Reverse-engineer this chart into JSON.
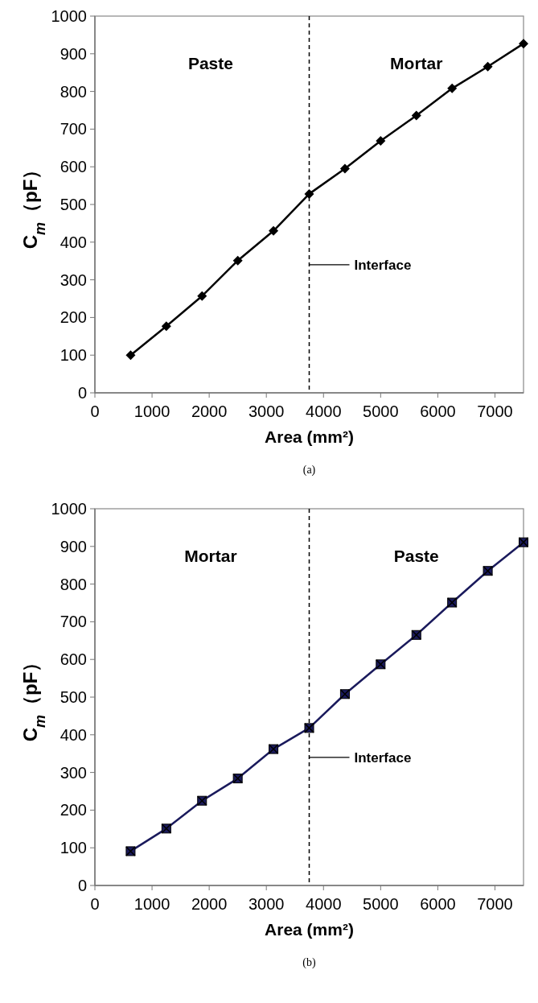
{
  "chart_data": [
    {
      "type": "line",
      "xlabel": "Area (mm²)",
      "ylabel": "C$_{m}$（pF）",
      "x": [
        625,
        1250,
        1875,
        2500,
        3125,
        3750,
        4375,
        5000,
        5625,
        6250,
        6875,
        7500
      ],
      "series": [
        {
          "color": "#000000",
          "values": [
            100,
            177,
            257,
            351,
            430,
            528,
            595,
            669,
            736,
            808,
            866,
            927
          ]
        }
      ],
      "marker": "diamond",
      "line_style": "solid",
      "xlim": [
        0,
        7500
      ],
      "xticks": [
        0,
        1000,
        2000,
        3000,
        4000,
        5000,
        6000,
        7000
      ],
      "ylim": [
        0,
        1000
      ],
      "yticks": [
        0,
        100,
        200,
        300,
        400,
        500,
        600,
        700,
        800,
        900,
        1000
      ],
      "grid": false,
      "ref_lines": [
        {
          "axis": "x",
          "value": 3750,
          "label": "Interface",
          "line_style": "dashed",
          "color": "#000000"
        }
      ],
      "annotations": [
        "Paste",
        "Mortar",
        "(a)"
      ]
    },
    {
      "type": "line",
      "xlabel": "Area (mm²)",
      "ylabel": "C$_{m}$（pF）",
      "x": [
        625,
        1250,
        1875,
        2500,
        3125,
        3750,
        4375,
        5000,
        5625,
        6250,
        6875,
        7500
      ],
      "series": [
        {
          "color": "#1a1a5c",
          "values": [
            91,
            151,
            225,
            284,
            362,
            418,
            508,
            587,
            665,
            751,
            835,
            911
          ]
        }
      ],
      "marker": "square",
      "line_style": "solid",
      "xlim": [
        0,
        7500
      ],
      "xticks": [
        0,
        1000,
        2000,
        3000,
        4000,
        5000,
        6000,
        7000
      ],
      "ylim": [
        0,
        1000
      ],
      "yticks": [
        0,
        100,
        200,
        300,
        400,
        500,
        600,
        700,
        800,
        900,
        1000
      ],
      "grid": false,
      "ref_lines": [
        {
          "axis": "x",
          "value": 3750,
          "label": "Interface",
          "line_style": "dashed",
          "color": "#000000"
        }
      ],
      "annotations": [
        "Mortar",
        "Paste",
        "(b)"
      ]
    }
  ]
}
